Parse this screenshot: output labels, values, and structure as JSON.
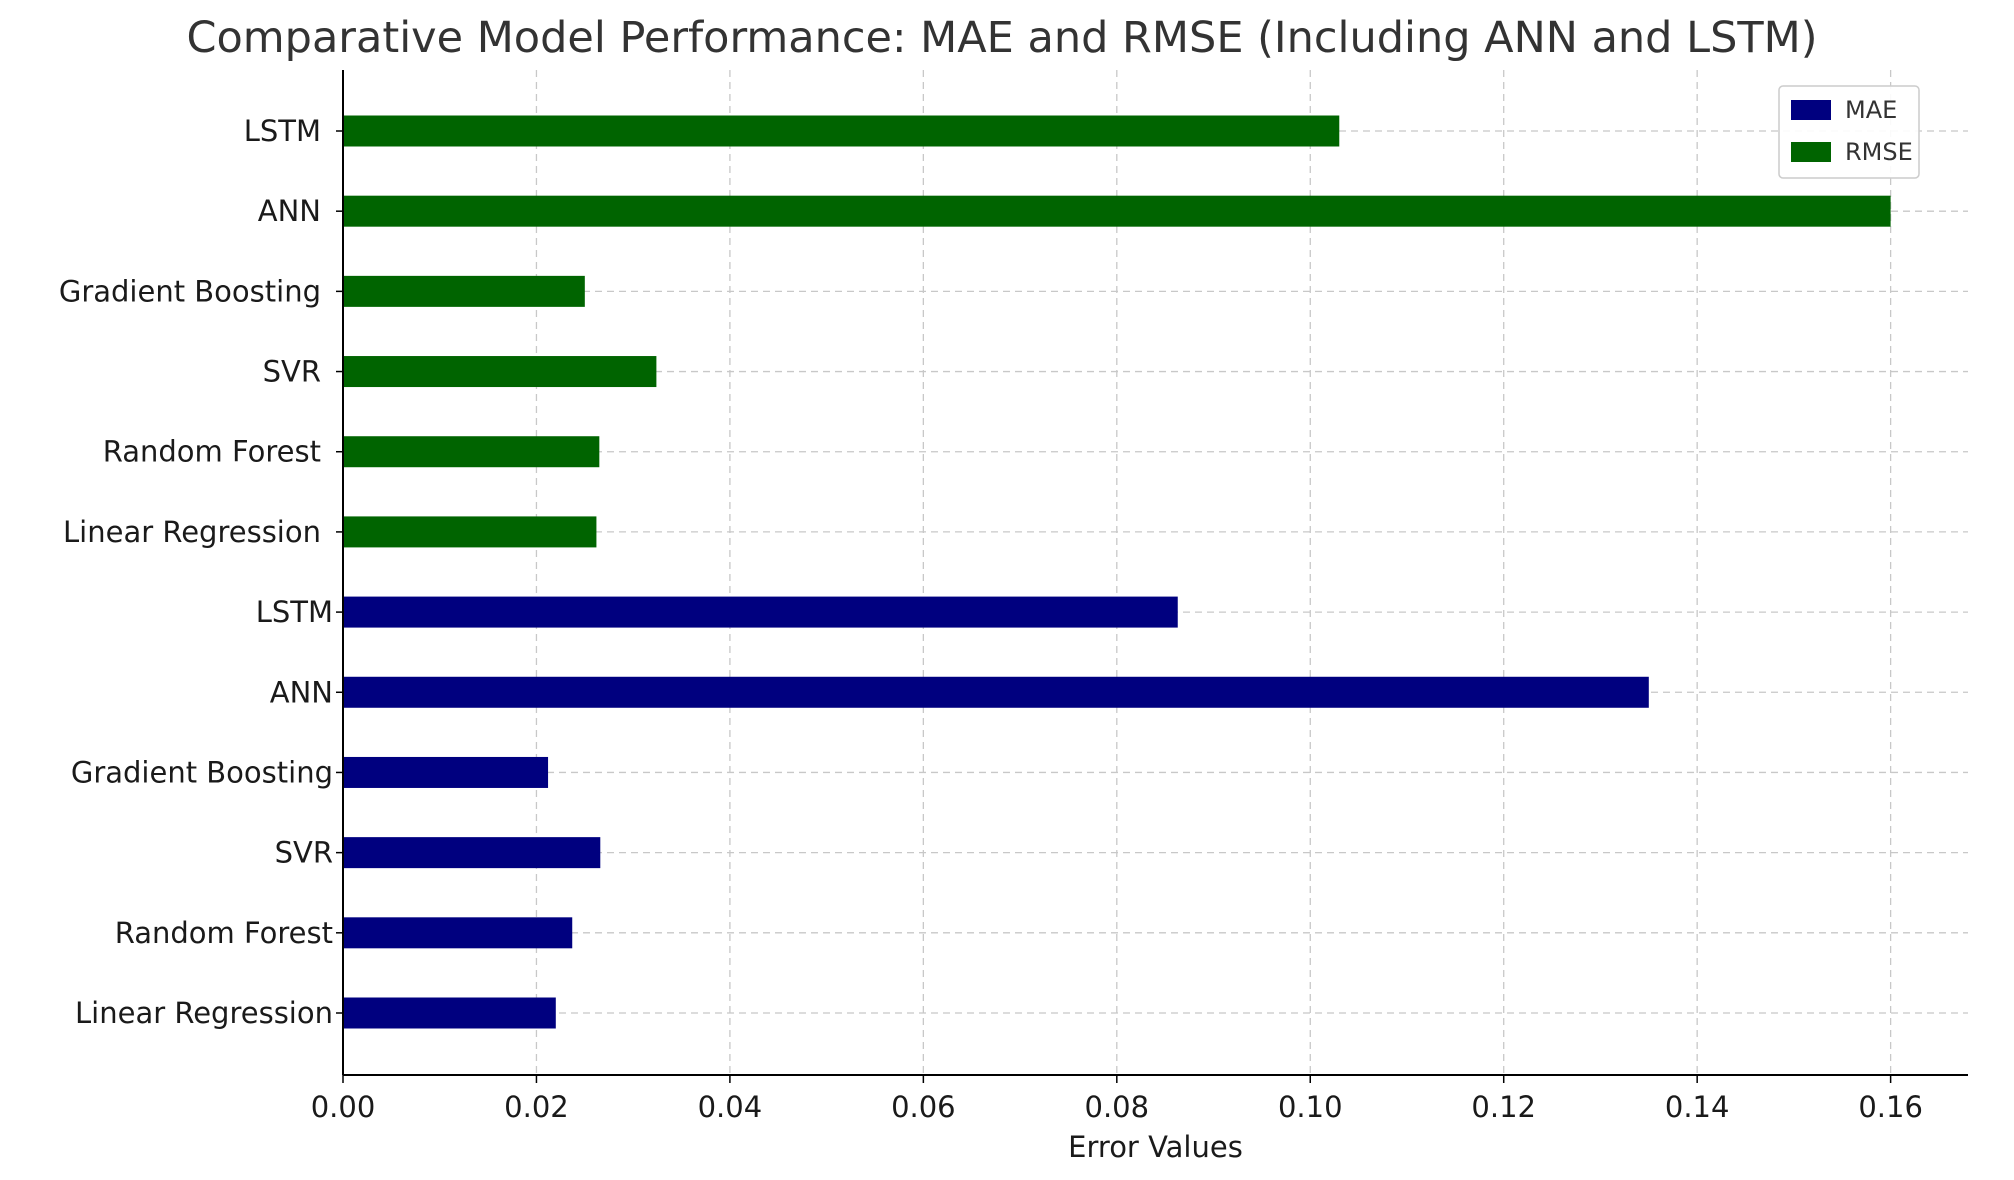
{
  "chart_data": {
    "type": "bar",
    "orientation": "horizontal",
    "title": "Comparative Model Performance: MAE and RMSE (Including ANN and LSTM)",
    "xlabel": "Error Values",
    "ylabel": "",
    "xlim": [
      0,
      0.168
    ],
    "xticks": [
      "0.00",
      "0.02",
      "0.04",
      "0.06",
      "0.08",
      "0.10",
      "0.12",
      "0.14",
      "0.16"
    ],
    "grid": true,
    "legend_position": "top-right",
    "series": [
      {
        "name": "MAE",
        "color": "#00007f",
        "categories": [
          "Linear Regression",
          "Random Forest",
          "SVR",
          "Gradient Boosting",
          "ANN",
          "LSTM"
        ],
        "values": [
          0.022,
          0.0237,
          0.0266,
          0.0212,
          0.135,
          0.0863
        ]
      },
      {
        "name": "RMSE",
        "color": "#006400",
        "categories": [
          "Linear Regression",
          "Random Forest",
          "SVR",
          "Gradient Boosting",
          "ANN",
          "LSTM"
        ],
        "values": [
          0.0262,
          0.0265,
          0.0324,
          0.025,
          0.16,
          0.103
        ]
      }
    ]
  }
}
